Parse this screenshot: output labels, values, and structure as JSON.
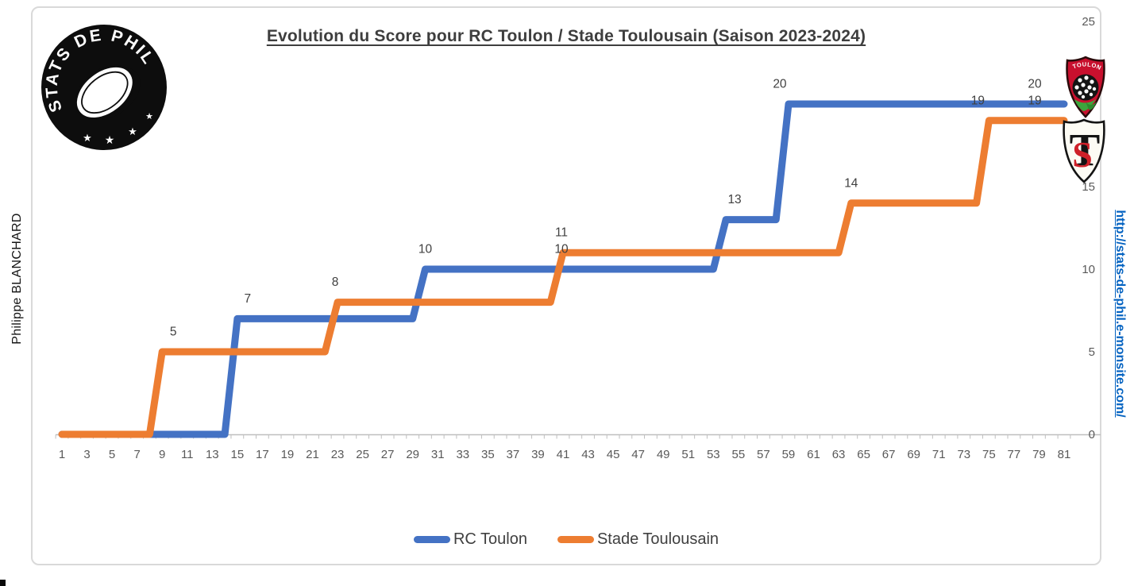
{
  "branding": {
    "author": "Philippe BLANCHARD",
    "site_url": "http://stats-de-phil.e-monsite.com/",
    "logo_text": "STATS DE PHIL",
    "logo_star": "★",
    "toulon_crest_text": "TOULON",
    "stade_crest_letter_s": "S",
    "stade_crest_letter_t": "T"
  },
  "chart_data": {
    "type": "line",
    "subtype": "step-score-evolution",
    "title": "Evolution du Score pour RC Toulon / Stade Toulousain (Saison 2023-2024)",
    "x_axis": {
      "label": "",
      "min": 1,
      "max": 81,
      "tick_labels": [
        "1",
        "3",
        "5",
        "7",
        "9",
        "11",
        "13",
        "15",
        "17",
        "19",
        "21",
        "23",
        "25",
        "27",
        "29",
        "31",
        "33",
        "35",
        "37",
        "39",
        "41",
        "43",
        "45",
        "47",
        "49",
        "51",
        "53",
        "55",
        "57",
        "59",
        "61",
        "63",
        "65",
        "67",
        "69",
        "71",
        "73",
        "75",
        "77",
        "79",
        "81"
      ]
    },
    "y_axis": {
      "label": "",
      "min": 0,
      "max": 25,
      "position": "right",
      "tick_labels": [
        "0",
        "5",
        "10",
        "15",
        "20",
        "25"
      ]
    },
    "grid": "off",
    "legend_position": "bottom",
    "series": [
      {
        "name": "RC Toulon",
        "color": "#4472C4",
        "points": [
          [
            1,
            0
          ],
          [
            14,
            0
          ],
          [
            15,
            7
          ],
          [
            29,
            7
          ],
          [
            30,
            10
          ],
          [
            53,
            10
          ],
          [
            54,
            13
          ],
          [
            58,
            13
          ],
          [
            59,
            20
          ],
          [
            81,
            20
          ]
        ]
      },
      {
        "name": "Stade Toulousain",
        "color": "#ED7D31",
        "points": [
          [
            1,
            0
          ],
          [
            8,
            0
          ],
          [
            9,
            5
          ],
          [
            22,
            5
          ],
          [
            23,
            8
          ],
          [
            40,
            8
          ],
          [
            41,
            11
          ],
          [
            63,
            11
          ],
          [
            64,
            14
          ],
          [
            74,
            14
          ],
          [
            75,
            19
          ],
          [
            81,
            19
          ]
        ]
      }
    ],
    "annotations": [
      {
        "text": "5",
        "minute": 9,
        "value": 5,
        "dx": 14
      },
      {
        "text": "7",
        "minute": 15,
        "value": 7,
        "dx": 13
      },
      {
        "text": "8",
        "minute": 23,
        "value": 8,
        "dx": -3
      },
      {
        "text": "10",
        "minute": 30,
        "value": 10,
        "dx": 0
      },
      {
        "text": "11",
        "minute": 41,
        "value": 11,
        "dx": -2
      },
      {
        "text": "10",
        "minute": 41,
        "value": 10,
        "dx": -2
      },
      {
        "text": "13",
        "minute": 54,
        "value": 13,
        "dx": 11
      },
      {
        "text": "20",
        "minute": 59,
        "value": 20,
        "dx": -11
      },
      {
        "text": "14",
        "minute": 64,
        "value": 14,
        "dx": 0
      },
      {
        "text": "19",
        "minute": 75,
        "value": 19,
        "dx": -14
      },
      {
        "text": "20",
        "minute": 81,
        "value": 20,
        "dx": -37
      },
      {
        "text": "19",
        "minute": 81,
        "value": 19,
        "dx": -37
      }
    ],
    "legend": [
      {
        "label": "RC Toulon",
        "color": "#4472C4"
      },
      {
        "label": "Stade Toulousain",
        "color": "#ED7D31"
      }
    ],
    "style": {
      "axis_line_color": "#BFBFBF",
      "tick_label_color": "#595959",
      "data_label_color": "#404040",
      "line_width": 9
    }
  },
  "colors": {
    "frame_border": "#D9D9D9",
    "title": "#3E3E3E",
    "link_blue": "#0563C1",
    "toulon_red": "#C8102E",
    "leaf_green": "#3DA53D"
  }
}
